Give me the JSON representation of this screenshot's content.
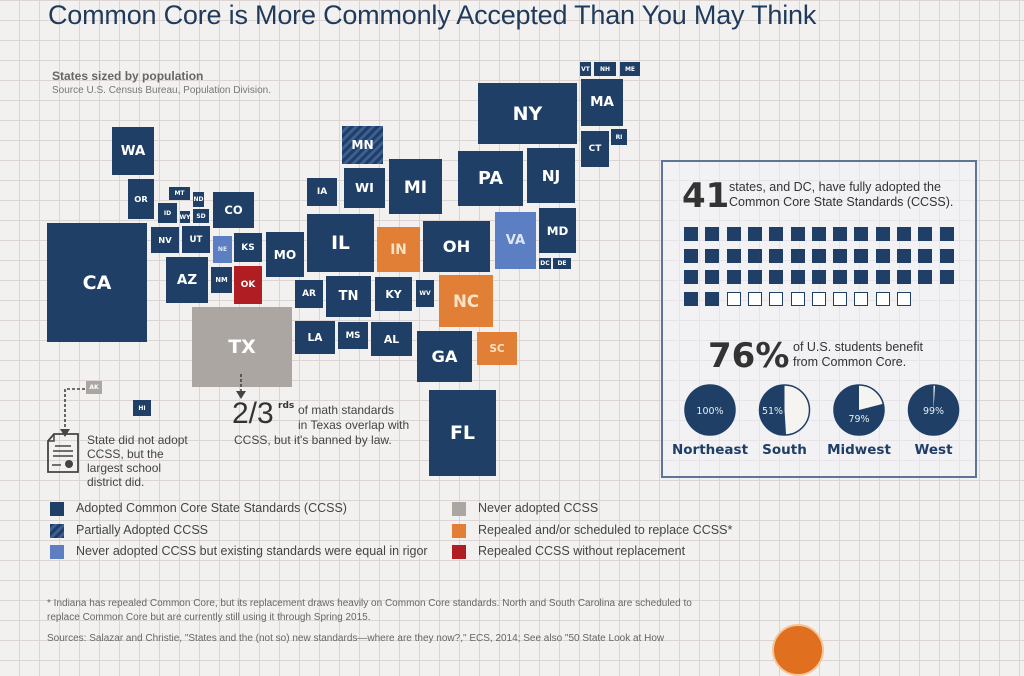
{
  "title": "Common Core is More Commonly Accepted Than You May Think",
  "subtitle": "States sized by population",
  "source": "Source U.S. Census Bureau, Population Division.",
  "colors": {
    "adopted": "#1f3f66",
    "partial": "#3d5f93",
    "equal_rigor": "#5b7fc2",
    "never": "#aca6a3",
    "repealed_scheduled": "#e07f35",
    "repealed_no_replacement": "#b01e23"
  },
  "states": [
    {
      "id": "VT",
      "label": "VT",
      "status": "adopted"
    },
    {
      "id": "NH",
      "label": "NH",
      "status": "adopted"
    },
    {
      "id": "ME",
      "label": "ME",
      "status": "adopted"
    },
    {
      "id": "NY",
      "label": "NY",
      "status": "adopted"
    },
    {
      "id": "MA",
      "label": "MA",
      "status": "adopted"
    },
    {
      "id": "CT",
      "label": "CT",
      "status": "adopted"
    },
    {
      "id": "RI",
      "label": "RI",
      "status": "adopted"
    },
    {
      "id": "WA",
      "label": "WA",
      "status": "adopted"
    },
    {
      "id": "MN",
      "label": "MN",
      "status": "partial"
    },
    {
      "id": "PA",
      "label": "PA",
      "status": "adopted"
    },
    {
      "id": "NJ",
      "label": "NJ",
      "status": "adopted"
    },
    {
      "id": "OR",
      "label": "OR",
      "status": "adopted"
    },
    {
      "id": "MT",
      "label": "MT",
      "status": "adopted"
    },
    {
      "id": "ND",
      "label": "ND",
      "status": "adopted"
    },
    {
      "id": "ID",
      "label": "ID",
      "status": "adopted"
    },
    {
      "id": "WY",
      "label": "WY",
      "status": "adopted"
    },
    {
      "id": "SD",
      "label": "SD",
      "status": "adopted"
    },
    {
      "id": "CO",
      "label": "CO",
      "status": "adopted"
    },
    {
      "id": "IA",
      "label": "IA",
      "status": "adopted"
    },
    {
      "id": "WI",
      "label": "WI",
      "status": "adopted"
    },
    {
      "id": "MI",
      "label": "MI",
      "status": "adopted"
    },
    {
      "id": "CA",
      "label": "CA",
      "status": "adopted"
    },
    {
      "id": "NV",
      "label": "NV",
      "status": "adopted"
    },
    {
      "id": "UT",
      "label": "UT",
      "status": "adopted"
    },
    {
      "id": "NE",
      "label": "NE",
      "status": "equal_rigor"
    },
    {
      "id": "KS",
      "label": "KS",
      "status": "adopted"
    },
    {
      "id": "MO",
      "label": "MO",
      "status": "adopted"
    },
    {
      "id": "IL",
      "label": "IL",
      "status": "adopted"
    },
    {
      "id": "IN",
      "label": "IN",
      "status": "repealed_scheduled"
    },
    {
      "id": "OH",
      "label": "OH",
      "status": "adopted"
    },
    {
      "id": "VA",
      "label": "VA",
      "status": "equal_rigor"
    },
    {
      "id": "MD",
      "label": "MD",
      "status": "adopted"
    },
    {
      "id": "DC",
      "label": "DC",
      "status": "adopted"
    },
    {
      "id": "DE",
      "label": "DE",
      "status": "adopted"
    },
    {
      "id": "AZ",
      "label": "AZ",
      "status": "adopted"
    },
    {
      "id": "NM",
      "label": "NM",
      "status": "adopted"
    },
    {
      "id": "OK",
      "label": "OK",
      "status": "repealed_no_replacement"
    },
    {
      "id": "AR",
      "label": "AR",
      "status": "adopted"
    },
    {
      "id": "TN",
      "label": "TN",
      "status": "adopted"
    },
    {
      "id": "KY",
      "label": "KY",
      "status": "adopted"
    },
    {
      "id": "WV",
      "label": "WV",
      "status": "adopted"
    },
    {
      "id": "NC",
      "label": "NC",
      "status": "repealed_scheduled"
    },
    {
      "id": "TX",
      "label": "TX",
      "status": "never"
    },
    {
      "id": "LA",
      "label": "LA",
      "status": "adopted"
    },
    {
      "id": "MS",
      "label": "MS",
      "status": "adopted"
    },
    {
      "id": "AL",
      "label": "AL",
      "status": "adopted"
    },
    {
      "id": "GA",
      "label": "GA",
      "status": "adopted"
    },
    {
      "id": "SC",
      "label": "SC",
      "status": "repealed_scheduled"
    },
    {
      "id": "FL",
      "label": "FL",
      "status": "adopted"
    },
    {
      "id": "HI",
      "label": "HI",
      "status": "adopted"
    },
    {
      "id": "AK",
      "label": "AK",
      "status": "never"
    }
  ],
  "annotations": {
    "alaska_note": "State did not adopt CCSS, but the largest school district did.",
    "alaska_icon": "certificate-icon",
    "texas_big": "2/3",
    "texas_sup": "rds",
    "texas_line1": "of math standards",
    "texas_line2": "in Texas overlap with",
    "texas_line3": "CCSS, but it's banned by law."
  },
  "panel": {
    "states_number": "41",
    "states_text1": "states, and DC, have fully adopted the",
    "states_text2": "Common Core State Standards (CCSS).",
    "waffle_filled": 41,
    "waffle_total": 50,
    "students_number": "76%",
    "students_text1": "of U.S. students benefit",
    "students_text2": "from Common Core.",
    "regions": [
      {
        "name": "Northeast",
        "percent": 100,
        "label": "100%"
      },
      {
        "name": "South",
        "percent": 51,
        "label": "51%"
      },
      {
        "name": "Midwest",
        "percent": 79,
        "label": "79%"
      },
      {
        "name": "West",
        "percent": 99,
        "label": "99%"
      }
    ]
  },
  "legend": [
    {
      "label": "Adopted Common Core State Standards (CCSS)",
      "status": "adopted"
    },
    {
      "label": "Partially Adopted CCSS",
      "status": "partial"
    },
    {
      "label": "Never adopted CCSS but existing standards were equal in rigor",
      "status": "equal_rigor"
    },
    {
      "label": "Never adopted CCSS",
      "status": "never"
    },
    {
      "label": "Repealed and/or scheduled to replace CCSS*",
      "status": "repealed_scheduled"
    },
    {
      "label": "Repealed CCSS without replacement",
      "status": "repealed_no_replacement"
    }
  ],
  "footnote1": "* Indiana has repealed Common Core, but its replacement draws heavily on Common Core standards. North and South Carolina are scheduled to",
  "footnote2": "replace Common Core but are currently still using it through Spring 2015.",
  "sources": "Sources: Salazar and Christie, \"States and the (not so) new standards—where are they now?,\" ECS, 2014; See also \"50 State Look at How"
}
